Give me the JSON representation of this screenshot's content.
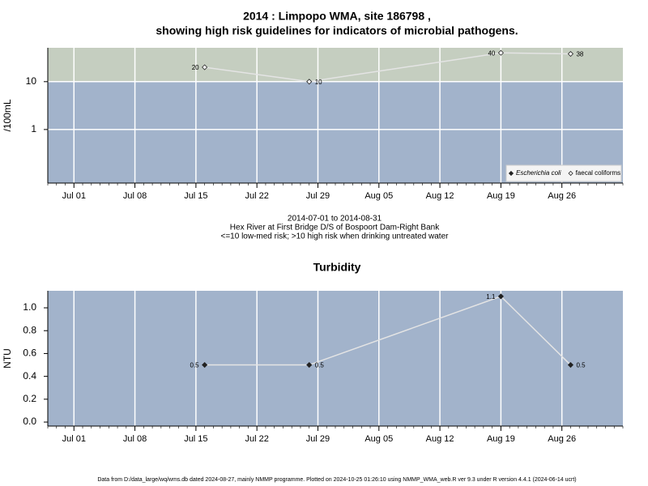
{
  "chart_data": [
    {
      "type": "line",
      "title": [
        "2014 : Limpopo WMA, site 186798 ,",
        "showing high risk guidelines for indicators of microbial pathogens."
      ],
      "subtitle": [
        "2014-07-01 to 2014-08-31",
        "Hex River at First Bridge D/S of Bospoort Dam-Right Bank",
        "<=10 low-med risk; >10 high risk when drinking untreated water"
      ],
      "y_label": "/100mL",
      "x": [
        "2014-07-16",
        "2014-07-28",
        "2014-08-19",
        "2014-08-27"
      ],
      "series": [
        {
          "name": "Escherichia coli",
          "marker": "filled",
          "color": "#222222",
          "values": [
            null,
            null,
            null,
            null
          ]
        },
        {
          "name": "faecal coliforms",
          "marker": "open",
          "color": "#e4e4e4",
          "values": [
            20,
            10,
            40,
            38
          ]
        }
      ],
      "ylog": true,
      "ylim": [
        0.076,
        51
      ],
      "yticks": [
        1,
        10
      ],
      "threshold": 10,
      "above_color": "#c5cec0",
      "below_color": "#a2b3cb",
      "xlim": [
        "2014-06-28",
        "2014-09-02"
      ],
      "xticks": [
        {
          "value": "2014-07-01",
          "label": "Jul 01"
        },
        {
          "value": "2014-07-08",
          "label": "Jul 08"
        },
        {
          "value": "2014-07-15",
          "label": "Jul 15"
        },
        {
          "value": "2014-07-22",
          "label": "Jul 22"
        },
        {
          "value": "2014-07-29",
          "label": "Jul 29"
        },
        {
          "value": "2014-08-05",
          "label": "Aug 05"
        },
        {
          "value": "2014-08-12",
          "label": "Aug 12"
        },
        {
          "value": "2014-08-19",
          "label": "Aug 19"
        },
        {
          "value": "2014-08-26",
          "label": "Aug 26"
        }
      ],
      "grid": true,
      "legend": "bottom-right"
    },
    {
      "type": "line",
      "title": [
        "Turbidity"
      ],
      "y_label": "NTU",
      "x": [
        "2014-07-16",
        "2014-07-28",
        "2014-08-19",
        "2014-08-27"
      ],
      "series": [
        {
          "name": "Turbidity",
          "marker": "filled",
          "color": "#e4e4e4",
          "values": [
            0.5,
            0.5,
            1.1,
            0.5
          ]
        }
      ],
      "ylog": false,
      "ylim": [
        -0.035,
        1.149
      ],
      "yticks": [
        {
          "value": 0,
          "label": "0.0"
        },
        {
          "value": 0.2,
          "label": "0.2"
        },
        {
          "value": 0.4,
          "label": "0.4"
        },
        {
          "value": 0.6,
          "label": "0.6"
        },
        {
          "value": 0.8,
          "label": "0.8"
        },
        {
          "value": 1,
          "label": "1.0"
        }
      ],
      "below_color": "#a2b3cb",
      "xlim": [
        "2014-06-28",
        "2014-09-02"
      ],
      "xticks": [
        {
          "value": "2014-07-01",
          "label": "Jul 01"
        },
        {
          "value": "2014-07-08",
          "label": "Jul 08"
        },
        {
          "value": "2014-07-15",
          "label": "Jul 15"
        },
        {
          "value": "2014-07-22",
          "label": "Jul 22"
        },
        {
          "value": "2014-07-29",
          "label": "Jul 29"
        },
        {
          "value": "2014-08-05",
          "label": "Aug 05"
        },
        {
          "value": "2014-08-12",
          "label": "Aug 12"
        },
        {
          "value": "2014-08-19",
          "label": "Aug 19"
        },
        {
          "value": "2014-08-26",
          "label": "Aug 26"
        }
      ],
      "grid": true
    }
  ],
  "footer": "Data from D:/data_large/wq/wms.db dated 2024-08-27, mainly NMMP programme. Plotted on 2024-10-25 01:26:10 using NMMP_WMA_web.R ver 9.3 under R version 4.4.1 (2024-06-14 ucrt)"
}
